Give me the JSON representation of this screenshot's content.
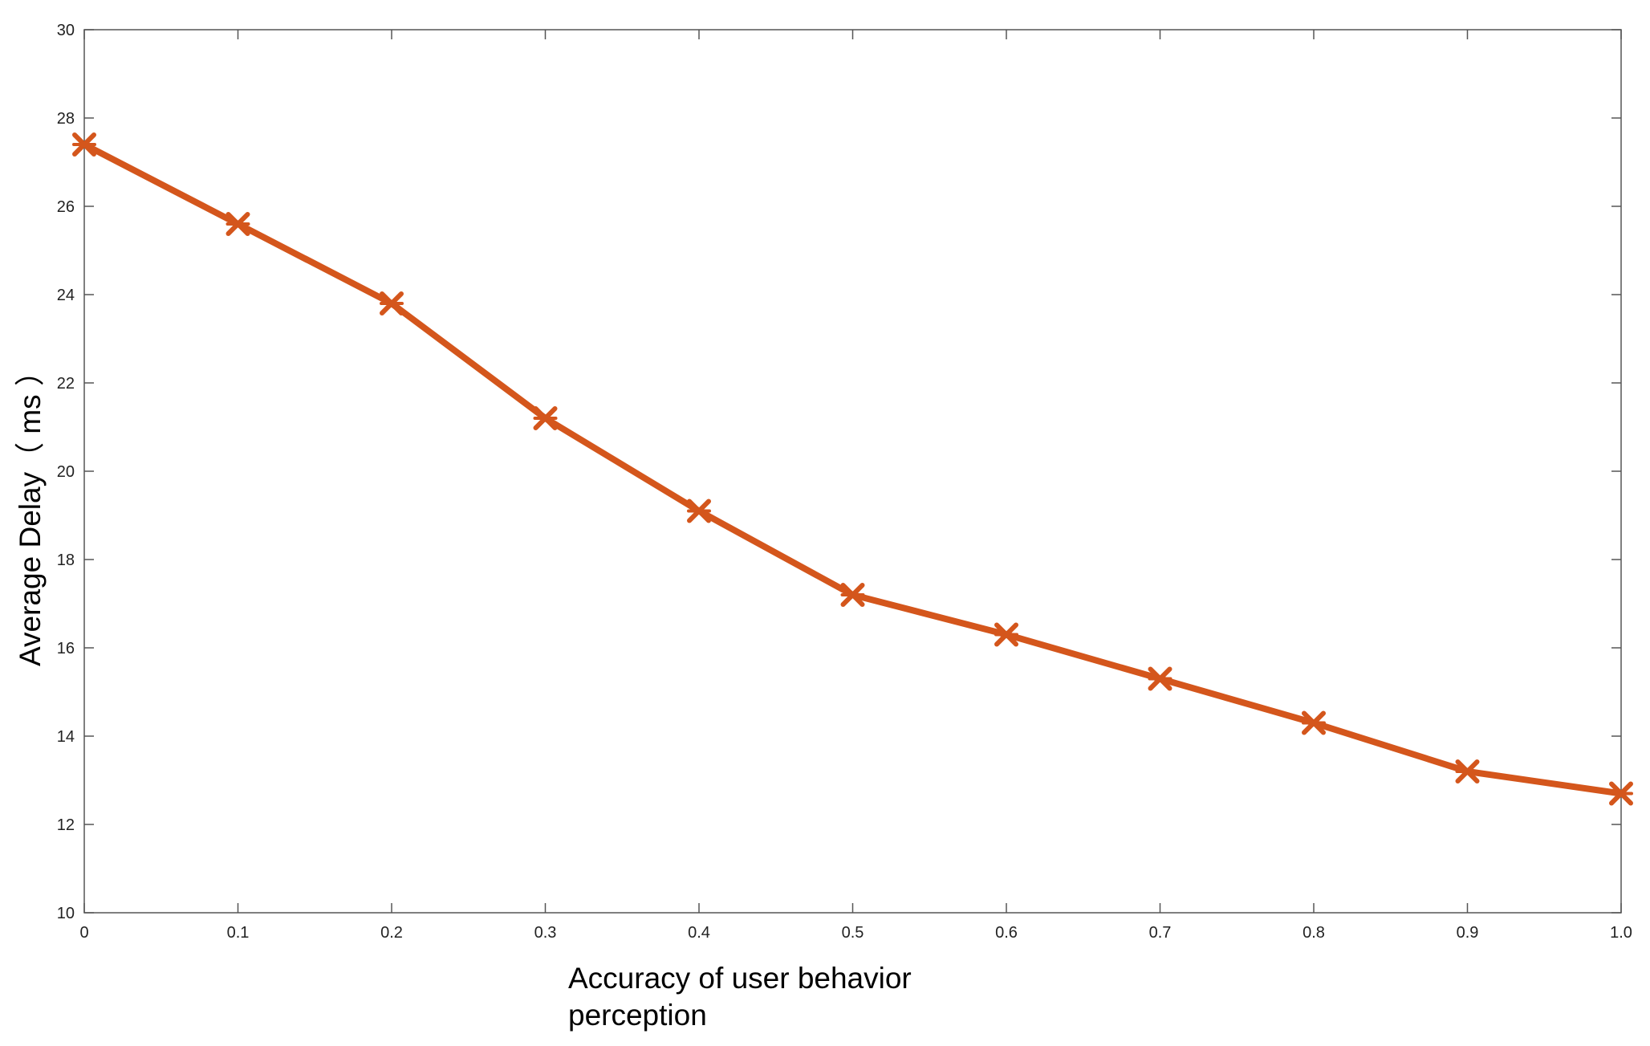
{
  "chart_data": {
    "type": "line",
    "title": "",
    "xlabel_lines": [
      "Accuracy of user behavior",
      "perception"
    ],
    "ylabel": "Average Delay（ ms ）",
    "xlim": [
      0,
      1.0
    ],
    "ylim": [
      10,
      30
    ],
    "x_ticks": [
      "0",
      "0.1",
      "0.2",
      "0.3",
      "0.4",
      "0.5",
      "0.6",
      "0.7",
      "0.8",
      "0.9",
      "1.0"
    ],
    "y_ticks": [
      "10",
      "12",
      "14",
      "16",
      "18",
      "20",
      "22",
      "24",
      "26",
      "28",
      "30"
    ],
    "grid": false,
    "legend": "none",
    "series": [
      {
        "color": "#d4561c",
        "marker": "x-star",
        "x": [
          0,
          0.1,
          0.2,
          0.3,
          0.4,
          0.5,
          0.6,
          0.7,
          0.8,
          0.9,
          1.0
        ],
        "y": [
          27.4,
          25.6,
          23.8,
          21.2,
          19.1,
          17.2,
          16.3,
          15.3,
          14.3,
          13.2,
          12.7
        ]
      }
    ]
  }
}
